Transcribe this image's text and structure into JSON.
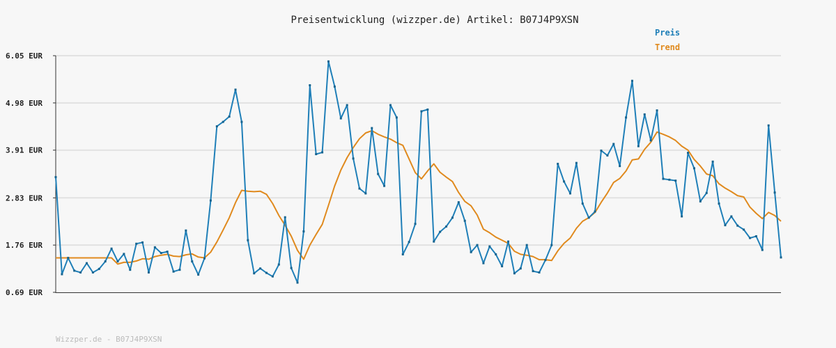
{
  "chart_data": {
    "type": "line",
    "title": "Preisentwicklung (wizzper.de) Artikel: B07J4P9XSN",
    "footer": "Wizzper.de - B07J4P9XSN",
    "ylim": [
      0.69,
      6.05
    ],
    "ytick_labels": [
      "6.05 EUR",
      "4.98 EUR",
      "3.91 EUR",
      "2.83 EUR",
      "1.76 EUR",
      "0.69 EUR"
    ],
    "ytick_values": [
      6.05,
      4.98,
      3.91,
      2.83,
      1.76,
      0.69
    ],
    "grid": true,
    "legend_position": "top-right",
    "series": [
      {
        "name": "Preis",
        "color": "#1f7fb8",
        "values": [
          3.3,
          1.1,
          1.47,
          1.18,
          1.14,
          1.35,
          1.14,
          1.22,
          1.39,
          1.68,
          1.39,
          1.56,
          1.2,
          1.79,
          1.82,
          1.14,
          1.71,
          1.58,
          1.61,
          1.16,
          1.2,
          2.09,
          1.39,
          1.09,
          1.46,
          2.77,
          4.45,
          4.55,
          4.67,
          5.28,
          4.55,
          1.87,
          1.12,
          1.23,
          1.13,
          1.05,
          1.32,
          2.39,
          1.24,
          0.91,
          2.07,
          5.38,
          3.82,
          3.86,
          5.92,
          5.35,
          4.63,
          4.93,
          3.72,
          3.04,
          2.93,
          4.41,
          3.37,
          3.1,
          4.93,
          4.65,
          1.55,
          1.83,
          2.24,
          4.79,
          4.83,
          1.84,
          2.06,
          2.18,
          2.38,
          2.73,
          2.31,
          1.6,
          1.76,
          1.35,
          1.73,
          1.55,
          1.28,
          1.84,
          1.12,
          1.23,
          1.76,
          1.17,
          1.14,
          1.42,
          1.76,
          3.6,
          3.2,
          2.93,
          3.62,
          2.7,
          2.38,
          2.52,
          3.9,
          3.79,
          4.05,
          3.55,
          4.65,
          5.48,
          4.0,
          4.72,
          4.13,
          4.81,
          3.26,
          3.24,
          3.22,
          2.41,
          3.85,
          3.5,
          2.75,
          2.94,
          3.65,
          2.7,
          2.21,
          2.41,
          2.2,
          2.11,
          1.92,
          1.96,
          1.65,
          4.47,
          2.95,
          1.48
        ]
      },
      {
        "name": "Trend",
        "color": "#e08a1e",
        "values": [
          1.47,
          1.47,
          1.47,
          1.47,
          1.47,
          1.47,
          1.47,
          1.47,
          1.47,
          1.47,
          1.33,
          1.37,
          1.37,
          1.4,
          1.45,
          1.44,
          1.5,
          1.53,
          1.55,
          1.51,
          1.5,
          1.54,
          1.56,
          1.49,
          1.47,
          1.6,
          1.83,
          2.1,
          2.38,
          2.72,
          3.0,
          2.98,
          2.97,
          2.98,
          2.91,
          2.7,
          2.43,
          2.21,
          1.96,
          1.64,
          1.44,
          1.76,
          2.0,
          2.23,
          2.66,
          3.1,
          3.46,
          3.74,
          3.97,
          4.17,
          4.3,
          4.35,
          4.27,
          4.21,
          4.16,
          4.08,
          4.02,
          3.71,
          3.4,
          3.26,
          3.44,
          3.6,
          3.41,
          3.3,
          3.2,
          2.95,
          2.75,
          2.65,
          2.44,
          2.12,
          2.04,
          1.94,
          1.87,
          1.8,
          1.62,
          1.55,
          1.53,
          1.5,
          1.43,
          1.43,
          1.41,
          1.63,
          1.8,
          1.92,
          2.14,
          2.3,
          2.38,
          2.5,
          2.73,
          2.94,
          3.18,
          3.27,
          3.44,
          3.69,
          3.71,
          3.93,
          4.09,
          4.32,
          4.27,
          4.21,
          4.13,
          4.0,
          3.91,
          3.7,
          3.55,
          3.37,
          3.33,
          3.15,
          3.05,
          2.97,
          2.88,
          2.85,
          2.62,
          2.48,
          2.36,
          2.5,
          2.43,
          2.3
        ]
      }
    ]
  }
}
